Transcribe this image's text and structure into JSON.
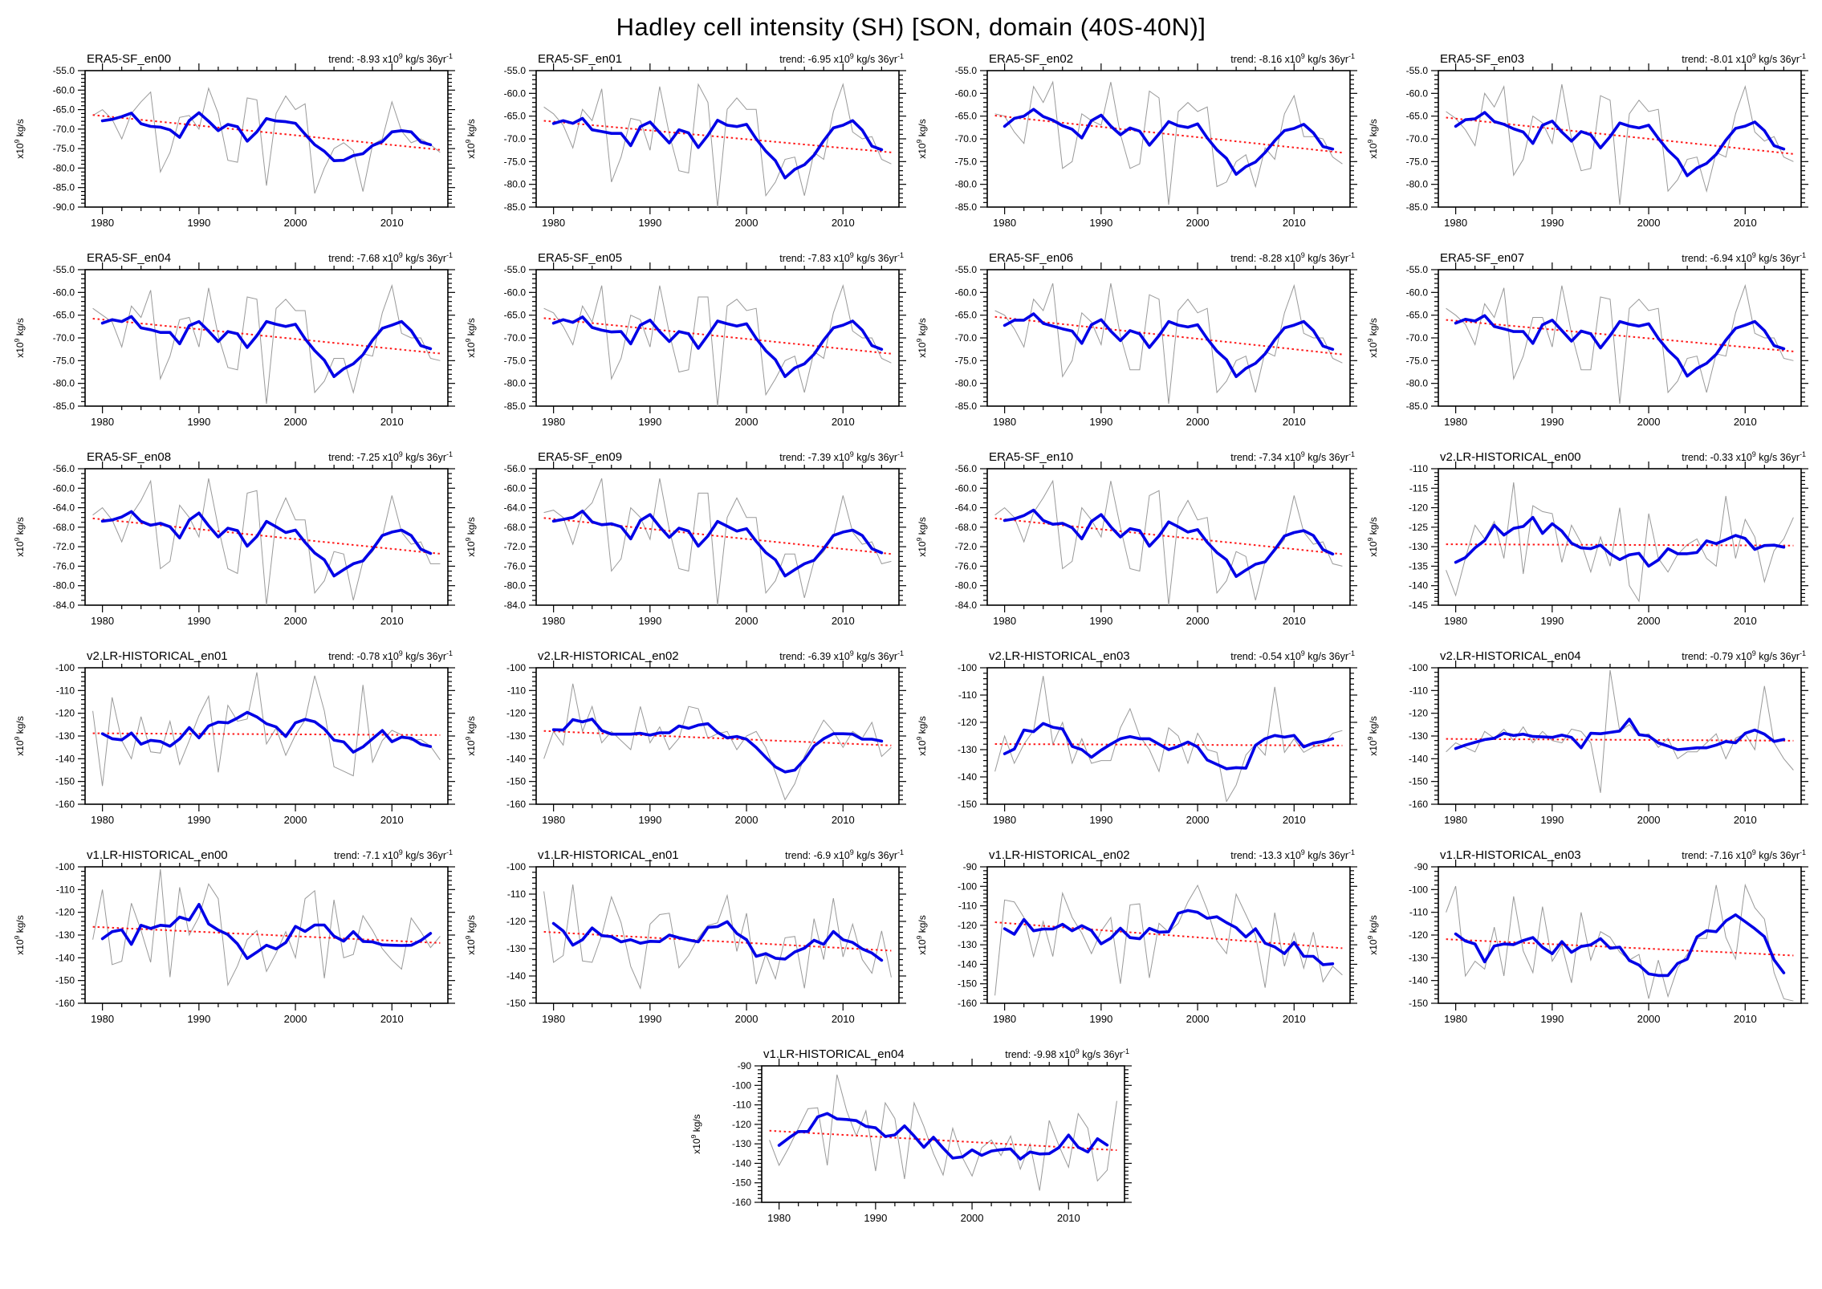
{
  "page_title": "Hadley cell intensity (SH) [SON, domain (40S-40N)]",
  "axis": {
    "years": [
      1979,
      1980,
      1981,
      1982,
      1983,
      1984,
      1985,
      1986,
      1987,
      1988,
      1989,
      1990,
      1991,
      1992,
      1993,
      1994,
      1995,
      1996,
      1997,
      1998,
      1999,
      2000,
      2001,
      2002,
      2003,
      2004,
      2005,
      2006,
      2007,
      2008,
      2009,
      2010,
      2011,
      2012,
      2013,
      2014,
      2015
    ],
    "x_major_ticks": [
      1980,
      1990,
      2000,
      2010
    ],
    "x_minor_step": 2,
    "x_range": [
      1978.2,
      2015.8
    ],
    "y_unit_label": "x10^{9} kg/s"
  },
  "colors": {
    "raw": "#999999",
    "smooth": "#0000e6",
    "trend": "#ff1a1a",
    "frame": "#000000"
  },
  "smoothing_window": 5,
  "chart_data": [
    {
      "type": "line",
      "title": "ERA5-SF_en00",
      "trend_label": "trend: -8.93 x10^{9} kg/s 36yr^{-1}",
      "trend_per_36yr": -8.93,
      "ylim": [
        -90,
        -55
      ],
      "ytick_step": 5,
      "ytick_decimals": 1,
      "raw": [
        -66.5,
        -65,
        -67.5,
        -72.5,
        -66,
        -63,
        -60.5,
        -81,
        -76,
        -67,
        -66.5,
        -70,
        -59.5,
        -66,
        -78,
        -78.5,
        -62,
        -62.5,
        -84.5,
        -66,
        -61.5,
        -65,
        -63.5,
        -86.5,
        -80,
        -75,
        -73.5,
        -75.5,
        -86,
        -74,
        -72.5,
        -63,
        -70.5,
        -73.5,
        -72.5,
        -74,
        -76
      ]
    },
    {
      "type": "line",
      "title": "ERA5-SF_en01",
      "trend_label": "trend: -6.95 x10^{9} kg/s 36yr^{-1}",
      "trend_per_36yr": -6.95,
      "ylim": [
        -85,
        -55
      ],
      "ytick_step": 5,
      "ytick_decimals": 1,
      "raw": [
        -63,
        -64.5,
        -67,
        -72,
        -63.5,
        -66,
        -59,
        -79.5,
        -74,
        -65.5,
        -66,
        -72.5,
        -58.5,
        -69,
        -77,
        -77.5,
        -58,
        -62,
        -85,
        -63.5,
        -61,
        -63.5,
        -63.5,
        -82.5,
        -79.5,
        -74.5,
        -74,
        -82.5,
        -73,
        -74.5,
        -64,
        -58,
        -68.5,
        -70,
        -69.5,
        -74.5,
        -75.5
      ]
    },
    {
      "type": "line",
      "title": "ERA5-SF_en02",
      "trend_label": "trend: -8.16 x10^{9} kg/s 36yr^{-1}",
      "trend_per_36yr": -8.16,
      "ylim": [
        -85,
        -55
      ],
      "ytick_step": 5,
      "ytick_decimals": 1,
      "raw": [
        -64.5,
        -65,
        -68.5,
        -71,
        -58.5,
        -62,
        -57.5,
        -76.5,
        -75,
        -64.5,
        -66,
        -67,
        -57.5,
        -69,
        -76.5,
        -75.5,
        -59.5,
        -61,
        -84.5,
        -64,
        -62,
        -64,
        -63,
        -80.5,
        -79.5,
        -75,
        -73.5,
        -80.5,
        -72,
        -74.5,
        -64.5,
        -60.5,
        -69.5,
        -69.5,
        -70,
        -74,
        -75.5
      ]
    },
    {
      "type": "line",
      "title": "ERA5-SF_en03",
      "trend_label": "trend: -8.01 x10^{9} kg/s 36yr^{-1}",
      "trend_per_36yr": -8.01,
      "ylim": [
        -85,
        -55
      ],
      "ytick_step": 5,
      "ytick_decimals": 1,
      "raw": [
        -64,
        -65.5,
        -68,
        -71.5,
        -60,
        -63,
        -58.5,
        -78,
        -74.5,
        -65,
        -66.5,
        -71,
        -58,
        -70,
        -77,
        -76.5,
        -60.5,
        -61.5,
        -84.5,
        -64.5,
        -61.5,
        -64,
        -63.5,
        -81.5,
        -79,
        -74.5,
        -74,
        -81.5,
        -73,
        -74,
        -64.5,
        -58.5,
        -68.5,
        -70.5,
        -69.5,
        -74,
        -75
      ]
    },
    {
      "type": "line",
      "title": "ERA5-SF_en04",
      "trend_label": "trend: -7.68 x10^{9} kg/s 36yr^{-1}",
      "trend_per_36yr": -7.68,
      "ylim": [
        -85,
        -55
      ],
      "ytick_step": 5,
      "ytick_decimals": 1,
      "raw": [
        -63.5,
        -65,
        -66.5,
        -72,
        -63,
        -65.5,
        -59.5,
        -79,
        -74,
        -66,
        -65.5,
        -72,
        -59,
        -69.5,
        -76.5,
        -77,
        -61,
        -61.5,
        -84.5,
        -63.5,
        -61.5,
        -64,
        -64,
        -82,
        -79.5,
        -74.5,
        -74.5,
        -82,
        -73.5,
        -74,
        -64.5,
        -58.5,
        -69,
        -70,
        -70,
        -74.5,
        -75
      ]
    },
    {
      "type": "line",
      "title": "ERA5-SF_en05",
      "trend_label": "trend: -7.83 x10^{9} kg/s 36yr^{-1}",
      "trend_per_36yr": -7.83,
      "ylim": [
        -85,
        -55
      ],
      "ytick_step": 5,
      "ytick_decimals": 1,
      "raw": [
        -63.5,
        -64.5,
        -67.5,
        -71.5,
        -63,
        -66.5,
        -58.5,
        -79,
        -74.5,
        -65,
        -66,
        -72,
        -58.5,
        -69,
        -77.5,
        -77,
        -61,
        -61,
        -85,
        -63,
        -61.5,
        -64,
        -63.5,
        -82.5,
        -79,
        -75,
        -74,
        -82,
        -73,
        -74.5,
        -64.5,
        -58.5,
        -68.5,
        -70,
        -70,
        -74.5,
        -75.5
      ]
    },
    {
      "type": "line",
      "title": "ERA5-SF_en06",
      "trend_label": "trend: -8.28 x10^{9} kg/s 36yr^{-1}",
      "trend_per_36yr": -8.28,
      "ylim": [
        -85,
        -55
      ],
      "ytick_step": 5,
      "ytick_decimals": 1,
      "raw": [
        -64,
        -65,
        -68,
        -72,
        -61.5,
        -64,
        -58,
        -78.5,
        -75,
        -64.5,
        -66.5,
        -71.5,
        -58,
        -69.5,
        -77,
        -77,
        -60.5,
        -61.5,
        -84.5,
        -64,
        -61.5,
        -64.5,
        -63.5,
        -82,
        -79.5,
        -75,
        -74,
        -82,
        -73,
        -74,
        -64.5,
        -58.5,
        -69,
        -70,
        -70,
        -74.5,
        -75.5
      ]
    },
    {
      "type": "line",
      "title": "ERA5-SF_en07",
      "trend_label": "trend: -6.94 x10^{9} kg/s 36yr^{-1}",
      "trend_per_36yr": -6.94,
      "ylim": [
        -85,
        -55
      ],
      "ytick_step": 5,
      "ytick_decimals": 1,
      "raw": [
        -63.5,
        -65,
        -67,
        -71.5,
        -62.5,
        -65.5,
        -59,
        -79,
        -74,
        -65.5,
        -65.5,
        -72,
        -58.5,
        -69,
        -77,
        -77,
        -61,
        -61.5,
        -84.5,
        -63.5,
        -61.5,
        -64,
        -63.5,
        -82,
        -79.5,
        -74.5,
        -74,
        -82,
        -73.5,
        -74,
        -64.5,
        -58.5,
        -69,
        -70,
        -70,
        -74.5,
        -75
      ]
    },
    {
      "type": "line",
      "title": "ERA5-SF_en08",
      "trend_label": "trend: -7.25 x10^{9} kg/s 36yr^{-1}",
      "trend_per_36yr": -7.25,
      "ylim": [
        -84,
        -56
      ],
      "ytick_step": 4,
      "ytick_decimals": 1,
      "raw": [
        -65.5,
        -64,
        -66.5,
        -71,
        -65.5,
        -62.5,
        -58.5,
        -76.5,
        -75,
        -63.5,
        -66,
        -70,
        -58,
        -68,
        -76.5,
        -77.5,
        -61,
        -60.5,
        -84,
        -66.5,
        -62,
        -66.5,
        -66.5,
        -81.5,
        -79,
        -73,
        -73.5,
        -83,
        -75,
        -73,
        -70,
        -61.5,
        -69,
        -71.5,
        -71,
        -75.5,
        -75.5
      ]
    },
    {
      "type": "line",
      "title": "ERA5-SF_en09",
      "trend_label": "trend: -7.39 x10^{9} kg/s 36yr^{-1}",
      "trend_per_36yr": -7.39,
      "ylim": [
        -84,
        -56
      ],
      "ytick_step": 4,
      "ytick_decimals": 1,
      "raw": [
        -65,
        -64.5,
        -66,
        -71.5,
        -65,
        -63,
        -58,
        -77,
        -74.5,
        -64,
        -66,
        -70.5,
        -58,
        -68.5,
        -76.5,
        -77,
        -61,
        -61,
        -84,
        -66,
        -62,
        -66,
        -66,
        -81.5,
        -79,
        -73.5,
        -73.5,
        -82.5,
        -75,
        -73,
        -70,
        -61.5,
        -69,
        -71.5,
        -71,
        -75.5,
        -75
      ]
    },
    {
      "type": "line",
      "title": "ERA5-SF_en10",
      "trend_label": "trend: -7.34 x10^{9} kg/s 36yr^{-1}",
      "trend_per_36yr": -7.34,
      "ylim": [
        -84,
        -56
      ],
      "ytick_step": 4,
      "ytick_decimals": 1,
      "raw": [
        -65.5,
        -64,
        -66,
        -71,
        -65,
        -62,
        -58.5,
        -76.5,
        -75,
        -64,
        -66.5,
        -70,
        -58.5,
        -68,
        -76.5,
        -77,
        -61.5,
        -60.5,
        -84,
        -66,
        -62.5,
        -66.5,
        -66,
        -81.5,
        -79,
        -73,
        -74,
        -83,
        -75,
        -73,
        -70.5,
        -61.5,
        -69,
        -71.5,
        -71,
        -75.5,
        -76
      ]
    },
    {
      "type": "line",
      "title": "v2.LR-HISTORICAL_en00",
      "trend_label": "trend: -0.33 x10^{9} kg/s 36yr^{-1}",
      "trend_per_36yr": -0.33,
      "ylim": [
        -145,
        -110
      ],
      "ytick_step": 5,
      "ytick_decimals": 0,
      "raw": [
        -136,
        -142.5,
        -133,
        -124.5,
        -128,
        -123.5,
        -133,
        -113.5,
        -137,
        -119.5,
        -121,
        -121.5,
        -134,
        -124.5,
        -129,
        -136.5,
        -127.5,
        -135,
        -120,
        -140,
        -144,
        -121.5,
        -133,
        -136.5,
        -132,
        -129.5,
        -128,
        -133,
        -135,
        -117,
        -133,
        -123,
        -127.5,
        -139,
        -131,
        -128,
        -122.5
      ]
    },
    {
      "type": "line",
      "title": "v2.LR-HISTORICAL_en01",
      "trend_label": "trend: -0.78 x10^{9} kg/s 36yr^{-1}",
      "trend_per_36yr": -0.78,
      "ylim": [
        -160,
        -100
      ],
      "ytick_step": 10,
      "ytick_decimals": 0,
      "raw": [
        -119,
        -152,
        -113,
        -132,
        -140,
        -121.5,
        -137,
        -137.5,
        -123.5,
        -142.5,
        -132,
        -121,
        -112.5,
        -146,
        -116.5,
        -123.5,
        -122.5,
        -102,
        -133.5,
        -126.5,
        -138.5,
        -129.5,
        -123,
        -103.5,
        -119,
        -143.5,
        -145.5,
        -147.5,
        -107.5,
        -141.5,
        -132,
        -127.5,
        -129.5,
        -132,
        -131.5,
        -134.5,
        -140.5
      ]
    },
    {
      "type": "line",
      "title": "v2.LR-HISTORICAL_en02",
      "trend_label": "trend: -6.39 x10^{9} kg/s 36yr^{-1}",
      "trend_per_36yr": -6.39,
      "ylim": [
        -160,
        -100
      ],
      "ytick_step": 10,
      "ytick_decimals": 0,
      "raw": [
        -140,
        -128,
        -134,
        -107,
        -128,
        -117,
        -133,
        -128,
        -132,
        -136,
        -117,
        -133,
        -126,
        -136,
        -131,
        -117,
        -118,
        -131,
        -129,
        -128,
        -136,
        -130,
        -128,
        -135,
        -146,
        -158,
        -151,
        -139,
        -131,
        -123,
        -128,
        -135,
        -128,
        -131,
        -124,
        -139,
        -135
      ]
    },
    {
      "type": "line",
      "title": "v2.LR-HISTORICAL_en03",
      "trend_label": "trend: -0.54 x10^{9} kg/s 36yr^{-1}",
      "trend_per_36yr": -0.54,
      "ylim": [
        -150,
        -100
      ],
      "ytick_step": 10,
      "ytick_decimals": 0,
      "raw": [
        -138,
        -125,
        -135,
        -128,
        -123,
        -103,
        -128,
        -120,
        -135,
        -126,
        -135,
        -134,
        -134,
        -122,
        -115,
        -125,
        -130,
        -138,
        -122,
        -125,
        -135,
        -124,
        -130,
        -131,
        -149,
        -143,
        -132,
        -128,
        -132,
        -107,
        -131,
        -126,
        -131,
        -129,
        -128,
        -124,
        -123
      ]
    },
    {
      "type": "line",
      "title": "v2.LR-HISTORICAL_en04",
      "trend_label": "trend: -0.79 x10^{9} kg/s 36yr^{-1}",
      "trend_per_36yr": -0.79,
      "ylim": [
        -160,
        -100
      ],
      "ytick_step": 10,
      "ytick_decimals": 0,
      "raw": [
        -137,
        -133,
        -135,
        -137,
        -128,
        -131,
        -127,
        -132,
        -126,
        -133,
        -128,
        -132,
        -133,
        -127,
        -128,
        -133,
        -155,
        -101,
        -128,
        -125,
        -130,
        -129,
        -135,
        -131,
        -140,
        -137,
        -137,
        -133,
        -129,
        -140,
        -131,
        -129,
        -136,
        -108,
        -133,
        -140,
        -145
      ]
    },
    {
      "type": "line",
      "title": "v1.LR-HISTORICAL_en00",
      "trend_label": "trend: -7.1 x10^{9} kg/s 36yr^{-1}",
      "trend_per_36yr": -7.1,
      "ylim": [
        -160,
        -100
      ],
      "ytick_step": 10,
      "ytick_decimals": 0,
      "raw": [
        -132,
        -110,
        -143,
        -141.5,
        -116,
        -128,
        -142,
        -101,
        -148.5,
        -109,
        -130,
        -122,
        -107.5,
        -114,
        -152,
        -143.5,
        -132,
        -128,
        -146,
        -138,
        -128.5,
        -140,
        -114,
        -110.5,
        -149,
        -114.5,
        -140,
        -138.5,
        -121.5,
        -128,
        -136,
        -141,
        -145,
        -122.5,
        -128.5,
        -135.5,
        -130.5
      ]
    },
    {
      "type": "line",
      "title": "v1.LR-HISTORICAL_en01",
      "trend_label": "trend: -6.9 x10^{9} kg/s 36yr^{-1}",
      "trend_per_36yr": -6.9,
      "ylim": [
        -150,
        -100
      ],
      "ytick_step": 10,
      "ytick_decimals": 0,
      "raw": [
        -109,
        -135,
        -132.5,
        -106.5,
        -134.5,
        -135,
        -125,
        -111,
        -120.5,
        -136.5,
        -144.5,
        -121,
        -117.5,
        -117,
        -137,
        -132.5,
        -126,
        -121.5,
        -120.5,
        -110.5,
        -131,
        -117,
        -143,
        -132,
        -141,
        -126,
        -125.5,
        -144.5,
        -119,
        -134,
        -111.5,
        -133,
        -121,
        -134,
        -139,
        -123.5,
        -140.5
      ]
    },
    {
      "type": "line",
      "title": "v1.LR-HISTORICAL_en02",
      "trend_label": "trend: -13.3 x10^{9} kg/s 36yr^{-1}",
      "trend_per_36yr": -13.3,
      "ylim": [
        -160,
        -90
      ],
      "ytick_step": 10,
      "ytick_decimals": 0,
      "raw": [
        -156,
        -107,
        -108,
        -116,
        -136,
        -118,
        -136,
        -103.5,
        -116,
        -124,
        -134.5,
        -123,
        -116,
        -150,
        -109.5,
        -109,
        -147,
        -119,
        -123.5,
        -119,
        -108,
        -99.5,
        -112,
        -128,
        -134.5,
        -104,
        -114.5,
        -125,
        -152,
        -113.5,
        -141,
        -124,
        -142,
        -123.5,
        -149,
        -141,
        -145.5
      ]
    },
    {
      "type": "line",
      "title": "v1.LR-HISTORICAL_en03",
      "trend_label": "trend: -7.16 x10^{9} kg/s 36yr^{-1}",
      "trend_per_36yr": -7.16,
      "ylim": [
        -150,
        -90
      ],
      "ytick_step": 10,
      "ytick_decimals": 0,
      "raw": [
        -110,
        -98.5,
        -138,
        -131.5,
        -135,
        -116.5,
        -138,
        -103,
        -127,
        -136.5,
        -107.5,
        -131.5,
        -124.5,
        -141,
        -110,
        -131,
        -118.5,
        -121,
        -127.5,
        -131,
        -128.5,
        -148,
        -131,
        -147,
        -134.5,
        -128.5,
        -121.5,
        -121.5,
        -98,
        -121,
        -130.5,
        -98,
        -108,
        -113,
        -136.5,
        -148,
        -149
      ]
    },
    {
      "type": "line",
      "title": "v1.LR-HISTORICAL_en04",
      "trend_label": "trend: -9.98 x10^{9} kg/s 36yr^{-1}",
      "trend_per_36yr": -9.98,
      "ylim": [
        -160,
        -90
      ],
      "ytick_step": 10,
      "ytick_decimals": 0,
      "raw": [
        -128,
        -141,
        -132,
        -122,
        -112,
        -111.5,
        -141,
        -94.5,
        -113,
        -126,
        -113,
        -144,
        -109,
        -117,
        -148,
        -109,
        -121,
        -135,
        -146,
        -122,
        -137,
        -146.5,
        -132,
        -128,
        -136,
        -126,
        -143,
        -130,
        -154,
        -118,
        -131,
        -142,
        -114.5,
        -122,
        -149,
        -143.5,
        -108
      ]
    }
  ]
}
